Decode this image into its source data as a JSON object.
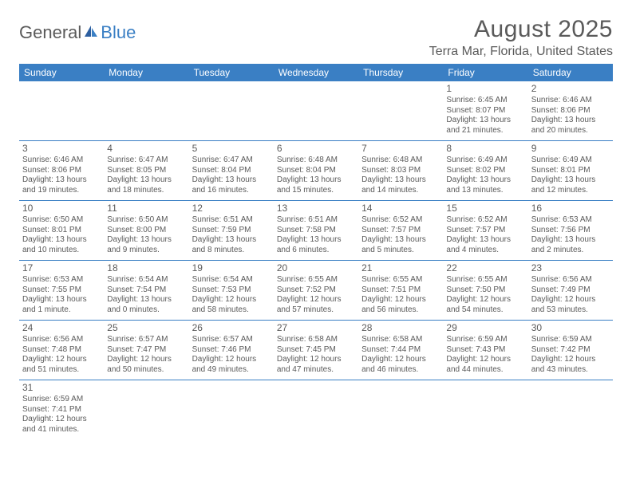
{
  "logo": {
    "part1": "General",
    "part2": "Blue"
  },
  "title": "August 2025",
  "location": "Terra Mar, Florida, United States",
  "colors": {
    "header_bg": "#3a7fc4",
    "header_text": "#ffffff",
    "text": "#5a5a5a",
    "row_border": "#3a7fc4"
  },
  "weekdays": [
    "Sunday",
    "Monday",
    "Tuesday",
    "Wednesday",
    "Thursday",
    "Friday",
    "Saturday"
  ],
  "weeks": [
    [
      null,
      null,
      null,
      null,
      null,
      {
        "d": "1",
        "sr": "Sunrise: 6:45 AM",
        "ss": "Sunset: 8:07 PM",
        "dl1": "Daylight: 13 hours",
        "dl2": "and 21 minutes."
      },
      {
        "d": "2",
        "sr": "Sunrise: 6:46 AM",
        "ss": "Sunset: 8:06 PM",
        "dl1": "Daylight: 13 hours",
        "dl2": "and 20 minutes."
      }
    ],
    [
      {
        "d": "3",
        "sr": "Sunrise: 6:46 AM",
        "ss": "Sunset: 8:06 PM",
        "dl1": "Daylight: 13 hours",
        "dl2": "and 19 minutes."
      },
      {
        "d": "4",
        "sr": "Sunrise: 6:47 AM",
        "ss": "Sunset: 8:05 PM",
        "dl1": "Daylight: 13 hours",
        "dl2": "and 18 minutes."
      },
      {
        "d": "5",
        "sr": "Sunrise: 6:47 AM",
        "ss": "Sunset: 8:04 PM",
        "dl1": "Daylight: 13 hours",
        "dl2": "and 16 minutes."
      },
      {
        "d": "6",
        "sr": "Sunrise: 6:48 AM",
        "ss": "Sunset: 8:04 PM",
        "dl1": "Daylight: 13 hours",
        "dl2": "and 15 minutes."
      },
      {
        "d": "7",
        "sr": "Sunrise: 6:48 AM",
        "ss": "Sunset: 8:03 PM",
        "dl1": "Daylight: 13 hours",
        "dl2": "and 14 minutes."
      },
      {
        "d": "8",
        "sr": "Sunrise: 6:49 AM",
        "ss": "Sunset: 8:02 PM",
        "dl1": "Daylight: 13 hours",
        "dl2": "and 13 minutes."
      },
      {
        "d": "9",
        "sr": "Sunrise: 6:49 AM",
        "ss": "Sunset: 8:01 PM",
        "dl1": "Daylight: 13 hours",
        "dl2": "and 12 minutes."
      }
    ],
    [
      {
        "d": "10",
        "sr": "Sunrise: 6:50 AM",
        "ss": "Sunset: 8:01 PM",
        "dl1": "Daylight: 13 hours",
        "dl2": "and 10 minutes."
      },
      {
        "d": "11",
        "sr": "Sunrise: 6:50 AM",
        "ss": "Sunset: 8:00 PM",
        "dl1": "Daylight: 13 hours",
        "dl2": "and 9 minutes."
      },
      {
        "d": "12",
        "sr": "Sunrise: 6:51 AM",
        "ss": "Sunset: 7:59 PM",
        "dl1": "Daylight: 13 hours",
        "dl2": "and 8 minutes."
      },
      {
        "d": "13",
        "sr": "Sunrise: 6:51 AM",
        "ss": "Sunset: 7:58 PM",
        "dl1": "Daylight: 13 hours",
        "dl2": "and 6 minutes."
      },
      {
        "d": "14",
        "sr": "Sunrise: 6:52 AM",
        "ss": "Sunset: 7:57 PM",
        "dl1": "Daylight: 13 hours",
        "dl2": "and 5 minutes."
      },
      {
        "d": "15",
        "sr": "Sunrise: 6:52 AM",
        "ss": "Sunset: 7:57 PM",
        "dl1": "Daylight: 13 hours",
        "dl2": "and 4 minutes."
      },
      {
        "d": "16",
        "sr": "Sunrise: 6:53 AM",
        "ss": "Sunset: 7:56 PM",
        "dl1": "Daylight: 13 hours",
        "dl2": "and 2 minutes."
      }
    ],
    [
      {
        "d": "17",
        "sr": "Sunrise: 6:53 AM",
        "ss": "Sunset: 7:55 PM",
        "dl1": "Daylight: 13 hours",
        "dl2": "and 1 minute."
      },
      {
        "d": "18",
        "sr": "Sunrise: 6:54 AM",
        "ss": "Sunset: 7:54 PM",
        "dl1": "Daylight: 13 hours",
        "dl2": "and 0 minutes."
      },
      {
        "d": "19",
        "sr": "Sunrise: 6:54 AM",
        "ss": "Sunset: 7:53 PM",
        "dl1": "Daylight: 12 hours",
        "dl2": "and 58 minutes."
      },
      {
        "d": "20",
        "sr": "Sunrise: 6:55 AM",
        "ss": "Sunset: 7:52 PM",
        "dl1": "Daylight: 12 hours",
        "dl2": "and 57 minutes."
      },
      {
        "d": "21",
        "sr": "Sunrise: 6:55 AM",
        "ss": "Sunset: 7:51 PM",
        "dl1": "Daylight: 12 hours",
        "dl2": "and 56 minutes."
      },
      {
        "d": "22",
        "sr": "Sunrise: 6:55 AM",
        "ss": "Sunset: 7:50 PM",
        "dl1": "Daylight: 12 hours",
        "dl2": "and 54 minutes."
      },
      {
        "d": "23",
        "sr": "Sunrise: 6:56 AM",
        "ss": "Sunset: 7:49 PM",
        "dl1": "Daylight: 12 hours",
        "dl2": "and 53 minutes."
      }
    ],
    [
      {
        "d": "24",
        "sr": "Sunrise: 6:56 AM",
        "ss": "Sunset: 7:48 PM",
        "dl1": "Daylight: 12 hours",
        "dl2": "and 51 minutes."
      },
      {
        "d": "25",
        "sr": "Sunrise: 6:57 AM",
        "ss": "Sunset: 7:47 PM",
        "dl1": "Daylight: 12 hours",
        "dl2": "and 50 minutes."
      },
      {
        "d": "26",
        "sr": "Sunrise: 6:57 AM",
        "ss": "Sunset: 7:46 PM",
        "dl1": "Daylight: 12 hours",
        "dl2": "and 49 minutes."
      },
      {
        "d": "27",
        "sr": "Sunrise: 6:58 AM",
        "ss": "Sunset: 7:45 PM",
        "dl1": "Daylight: 12 hours",
        "dl2": "and 47 minutes."
      },
      {
        "d": "28",
        "sr": "Sunrise: 6:58 AM",
        "ss": "Sunset: 7:44 PM",
        "dl1": "Daylight: 12 hours",
        "dl2": "and 46 minutes."
      },
      {
        "d": "29",
        "sr": "Sunrise: 6:59 AM",
        "ss": "Sunset: 7:43 PM",
        "dl1": "Daylight: 12 hours",
        "dl2": "and 44 minutes."
      },
      {
        "d": "30",
        "sr": "Sunrise: 6:59 AM",
        "ss": "Sunset: 7:42 PM",
        "dl1": "Daylight: 12 hours",
        "dl2": "and 43 minutes."
      }
    ],
    [
      {
        "d": "31",
        "sr": "Sunrise: 6:59 AM",
        "ss": "Sunset: 7:41 PM",
        "dl1": "Daylight: 12 hours",
        "dl2": "and 41 minutes."
      },
      null,
      null,
      null,
      null,
      null,
      null
    ]
  ]
}
